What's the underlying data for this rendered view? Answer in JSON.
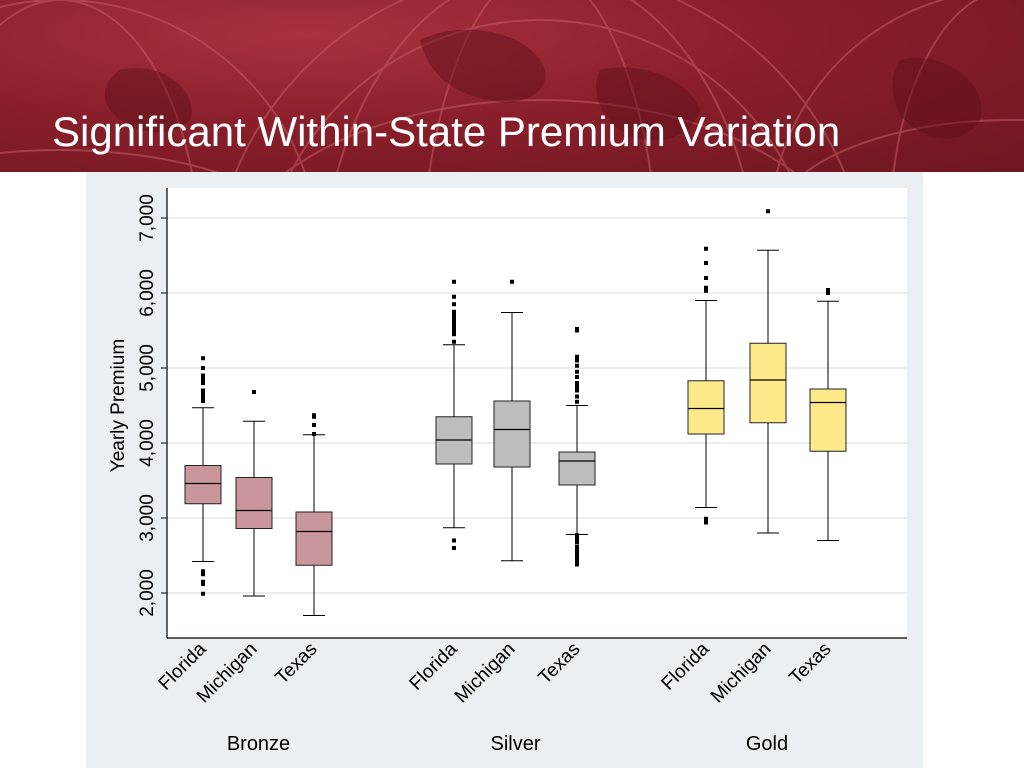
{
  "slide": {
    "title": "Significant Within-State Premium Variation"
  },
  "colors": {
    "banner": "#8a1f2b",
    "bronze": "#c9969c",
    "silver": "#bdbdbd",
    "gold": "#fde98a",
    "panel": "#e9eff2",
    "plot_bg": "#ffffff"
  },
  "chart_data": {
    "type": "box",
    "ylabel": "Yearly Premium",
    "ylim": [
      1400,
      7400
    ],
    "yticks": [
      2000,
      3000,
      4000,
      5000,
      6000,
      7000
    ],
    "ytick_labels": [
      "2,000",
      "3,000",
      "4,000",
      "5,000",
      "6,000",
      "7,000"
    ],
    "grid": true,
    "groups": [
      {
        "name": "Bronze",
        "color": "#c9969c",
        "boxes": [
          {
            "label": "Florida",
            "whisker_low": 2420,
            "q1": 3190,
            "median": 3460,
            "q3": 3700,
            "whisker_high": 4470,
            "outliers": [
              2290,
              2250,
              2150,
              2120,
              1990,
              4560,
              4600,
              4650,
              4700,
              4800,
              4850,
              4900,
              5000,
              5130
            ]
          },
          {
            "label": "Michigan",
            "whisker_low": 1960,
            "q1": 2860,
            "median": 3100,
            "q3": 3540,
            "whisker_high": 4290,
            "outliers": [
              4680
            ]
          },
          {
            "label": "Texas",
            "whisker_low": 1700,
            "q1": 2370,
            "median": 2820,
            "q3": 3080,
            "whisker_high": 4110,
            "outliers": [
              4120,
              4240,
              4350,
              4370
            ]
          }
        ]
      },
      {
        "name": "Silver",
        "color": "#bdbdbd",
        "boxes": [
          {
            "label": "Florida",
            "whisker_low": 2870,
            "q1": 3720,
            "median": 4040,
            "q3": 4350,
            "whisker_high": 5310,
            "outliers": [
              2600,
              2700,
              5350,
              5450,
              5500,
              5550,
              5600,
              5650,
              5700,
              5750,
              5850,
              5950,
              6150
            ]
          },
          {
            "label": "Michigan",
            "whisker_low": 2430,
            "q1": 3680,
            "median": 4180,
            "q3": 4560,
            "whisker_high": 5740,
            "outliers": [
              6150
            ]
          },
          {
            "label": "Texas",
            "whisker_low": 2780,
            "q1": 3440,
            "median": 3760,
            "q3": 3880,
            "whisker_high": 4500,
            "outliers": [
              2380,
              2420,
              2470,
              2520,
              2570,
              2620,
              2680,
              2730,
              2770,
              4550,
              4620,
              4700,
              4750,
              4800,
              4880,
              4950,
              5030,
              5100,
              5150,
              5500,
              5520
            ]
          }
        ]
      },
      {
        "name": "Gold",
        "color": "#fde98a",
        "boxes": [
          {
            "label": "Florida",
            "whisker_low": 3140,
            "q1": 4120,
            "median": 4460,
            "q3": 4830,
            "whisker_high": 5900,
            "outliers": [
              2940,
              2990,
              6030,
              6070,
              6200,
              6400,
              6590
            ]
          },
          {
            "label": "Michigan",
            "whisker_low": 2800,
            "q1": 4270,
            "median": 4840,
            "q3": 5330,
            "whisker_high": 6570,
            "outliers": [
              7090
            ]
          },
          {
            "label": "Texas",
            "whisker_low": 2700,
            "q1": 3890,
            "median": 4540,
            "q3": 4720,
            "whisker_high": 5890,
            "outliers": [
              6000,
              6020,
              6040
            ]
          }
        ]
      }
    ]
  }
}
